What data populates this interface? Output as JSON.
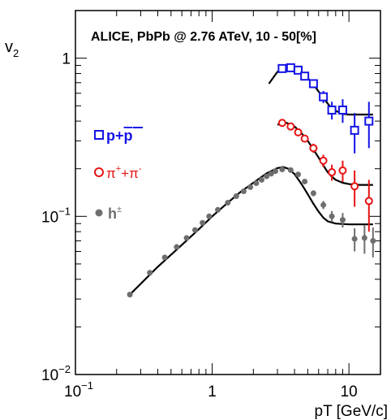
{
  "chart_data": {
    "type": "scatter",
    "title": "ALICE, PbPb @ 2.76 ATeV, 10 - 50[%]",
    "xlabel": "pT [GeV/c]",
    "ylabel": "v",
    "ylabel_sub": "2",
    "xscale": "log",
    "yscale": "log",
    "xlim": [
      0.1,
      17
    ],
    "ylim": [
      0.01,
      2
    ],
    "x_ticks": [
      {
        "value": 0.1,
        "base": "10",
        "exp": "−1"
      },
      {
        "value": 1,
        "base": "1",
        "exp": ""
      },
      {
        "value": 10,
        "base": "10",
        "exp": ""
      }
    ],
    "y_ticks": [
      {
        "value": 0.01,
        "base": "10",
        "exp": "−2"
      },
      {
        "value": 0.1,
        "base": "10",
        "exp": "−1"
      },
      {
        "value": 1,
        "base": "1",
        "exp": ""
      }
    ],
    "legend_position": "left",
    "series": [
      {
        "name": "p+p̄",
        "label_main": "p+",
        "label_bar": "p",
        "color": "#1414e6",
        "marker": "open-square",
        "points": [
          {
            "x": 3.25,
            "y": 0.86,
            "err": 0.03
          },
          {
            "x": 3.75,
            "y": 0.87,
            "err": 0.03
          },
          {
            "x": 4.25,
            "y": 0.84,
            "err": 0.03
          },
          {
            "x": 4.75,
            "y": 0.77,
            "err": 0.03
          },
          {
            "x": 5.5,
            "y": 0.69,
            "err": 0.04
          },
          {
            "x": 6.5,
            "y": 0.57,
            "err": 0.05
          },
          {
            "x": 7.5,
            "y": 0.47,
            "err": 0.06
          },
          {
            "x": 9,
            "y": 0.47,
            "err": 0.08
          },
          {
            "x": 11,
            "y": 0.35,
            "err": 0.1
          },
          {
            "x": 14,
            "y": 0.4,
            "err": 0.13
          }
        ],
        "fit": [
          [
            2.6,
            0.69
          ],
          [
            3.0,
            0.82
          ],
          [
            3.4,
            0.865
          ],
          [
            3.8,
            0.865
          ],
          [
            4.2,
            0.84
          ],
          [
            4.7,
            0.79
          ],
          [
            5.2,
            0.72
          ],
          [
            5.8,
            0.64
          ],
          [
            6.5,
            0.56
          ],
          [
            7.2,
            0.5
          ],
          [
            8.0,
            0.465
          ],
          [
            9.0,
            0.445
          ],
          [
            10,
            0.44
          ],
          [
            12,
            0.44
          ],
          [
            15,
            0.44
          ]
        ]
      },
      {
        "name": "π⁺+π⁻",
        "label_main": "π",
        "label_sup1": "+",
        "label_mid": "+π",
        "label_sup2": "-",
        "color": "#e61414",
        "marker": "open-circle",
        "points": [
          {
            "x": 3.25,
            "y": 0.39,
            "err": 0.015
          },
          {
            "x": 3.75,
            "y": 0.37,
            "err": 0.015
          },
          {
            "x": 4.25,
            "y": 0.34,
            "err": 0.015
          },
          {
            "x": 4.75,
            "y": 0.31,
            "err": 0.015
          },
          {
            "x": 5.5,
            "y": 0.27,
            "err": 0.018
          },
          {
            "x": 6.5,
            "y": 0.225,
            "err": 0.02
          },
          {
            "x": 7.5,
            "y": 0.19,
            "err": 0.022
          },
          {
            "x": 9,
            "y": 0.195,
            "err": 0.03
          },
          {
            "x": 11,
            "y": 0.155,
            "err": 0.04
          },
          {
            "x": 14,
            "y": 0.125,
            "err": 0.045
          }
        ],
        "fit": [
          [
            3.0,
            0.38
          ],
          [
            3.5,
            0.39
          ],
          [
            4.0,
            0.37
          ],
          [
            4.5,
            0.335
          ],
          [
            5.0,
            0.3
          ],
          [
            5.5,
            0.265
          ],
          [
            6.0,
            0.235
          ],
          [
            6.5,
            0.21
          ],
          [
            7.0,
            0.19
          ],
          [
            7.5,
            0.178
          ],
          [
            8.0,
            0.17
          ],
          [
            9.0,
            0.163
          ],
          [
            10,
            0.16
          ],
          [
            12,
            0.158
          ],
          [
            15,
            0.158
          ]
        ]
      },
      {
        "name": "h±",
        "label_main": "h",
        "label_sup1": "±",
        "color": "#6e6e6e",
        "marker": "filled-circle",
        "points": [
          {
            "x": 0.25,
            "y": 0.032,
            "err": 0
          },
          {
            "x": 0.35,
            "y": 0.044,
            "err": 0
          },
          {
            "x": 0.45,
            "y": 0.055,
            "err": 0
          },
          {
            "x": 0.55,
            "y": 0.064,
            "err": 0
          },
          {
            "x": 0.65,
            "y": 0.073,
            "err": 0
          },
          {
            "x": 0.75,
            "y": 0.082,
            "err": 0
          },
          {
            "x": 0.85,
            "y": 0.091,
            "err": 0
          },
          {
            "x": 0.95,
            "y": 0.1,
            "err": 0
          },
          {
            "x": 1.1,
            "y": 0.11,
            "err": 0
          },
          {
            "x": 1.3,
            "y": 0.122,
            "err": 0
          },
          {
            "x": 1.5,
            "y": 0.134,
            "err": 0
          },
          {
            "x": 1.7,
            "y": 0.144,
            "err": 0
          },
          {
            "x": 1.9,
            "y": 0.153,
            "err": 0
          },
          {
            "x": 2.1,
            "y": 0.162,
            "err": 0
          },
          {
            "x": 2.3,
            "y": 0.17,
            "err": 0
          },
          {
            "x": 2.5,
            "y": 0.179,
            "err": 0
          },
          {
            "x": 2.7,
            "y": 0.186,
            "err": 0
          },
          {
            "x": 2.9,
            "y": 0.193,
            "err": 0
          },
          {
            "x": 3.25,
            "y": 0.198,
            "err": 0.004
          },
          {
            "x": 3.75,
            "y": 0.196,
            "err": 0.004
          },
          {
            "x": 4.25,
            "y": 0.184,
            "err": 0.005
          },
          {
            "x": 4.75,
            "y": 0.166,
            "err": 0.005
          },
          {
            "x": 5.5,
            "y": 0.14,
            "err": 0.006
          },
          {
            "x": 6.5,
            "y": 0.118,
            "err": 0.007
          },
          {
            "x": 7.5,
            "y": 0.1,
            "err": 0.008
          },
          {
            "x": 9,
            "y": 0.095,
            "err": 0.01
          },
          {
            "x": 11,
            "y": 0.072,
            "err": 0.012
          },
          {
            "x": 13,
            "y": 0.073,
            "err": 0.015
          },
          {
            "x": 15,
            "y": 0.07,
            "err": 0.015
          }
        ],
        "fit": [
          [
            0.25,
            0.032
          ],
          [
            0.4,
            0.048
          ],
          [
            0.6,
            0.066
          ],
          [
            0.8,
            0.083
          ],
          [
            1.0,
            0.1
          ],
          [
            1.3,
            0.122
          ],
          [
            1.6,
            0.142
          ],
          [
            2.0,
            0.163
          ],
          [
            2.5,
            0.187
          ],
          [
            3.0,
            0.202
          ],
          [
            3.3,
            0.205
          ],
          [
            3.6,
            0.2
          ],
          [
            4.0,
            0.185
          ],
          [
            4.5,
            0.16
          ],
          [
            5.0,
            0.138
          ],
          [
            5.5,
            0.12
          ],
          [
            6.0,
            0.107
          ],
          [
            6.5,
            0.098
          ],
          [
            7.0,
            0.093
          ],
          [
            8.0,
            0.09
          ],
          [
            10,
            0.089
          ],
          [
            15,
            0.089
          ]
        ]
      }
    ]
  }
}
